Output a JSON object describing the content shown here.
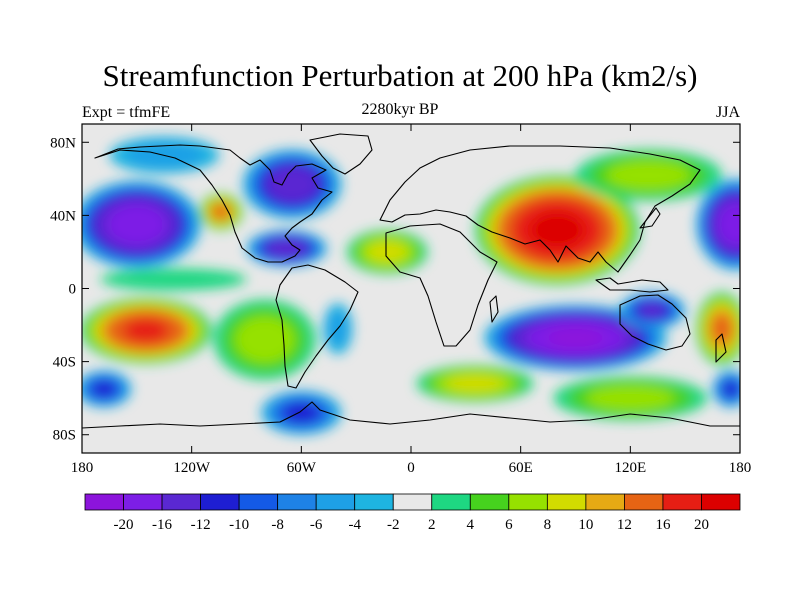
{
  "figure": {
    "title": "Streamfunction Perturbation at 200 hPa (km2/s)",
    "subtitle_left": "Expt = tfmFE",
    "subtitle_center": "2280kyr BP",
    "subtitle_right": "JJA"
  },
  "map": {
    "projection": "cylindrical-equidistant",
    "lon_range": [
      -180,
      180
    ],
    "lat_range": [
      -90,
      90
    ],
    "background_color": "#e8e8e8",
    "lat_ticks": [
      {
        "lat": 80,
        "label": "80N"
      },
      {
        "lat": 40,
        "label": "40N"
      },
      {
        "lat": 0,
        "label": "0"
      },
      {
        "lat": -40,
        "label": "40S"
      },
      {
        "lat": -80,
        "label": "80S"
      }
    ],
    "lon_ticks": [
      {
        "lon": -180,
        "label": "180"
      },
      {
        "lon": -120,
        "label": "120W"
      },
      {
        "lon": -60,
        "label": "60W"
      },
      {
        "lon": 0,
        "label": "0"
      },
      {
        "lon": 60,
        "label": "60E"
      },
      {
        "lon": 120,
        "label": "120E"
      },
      {
        "lon": 180,
        "label": "180"
      }
    ],
    "features": [
      {
        "name": "north-pacific-low",
        "lon": -150,
        "lat": 35,
        "rx": 35,
        "ry": 24,
        "value": -18
      },
      {
        "name": "north-pacific-low-dateline",
        "lon": 178,
        "lat": 35,
        "rx": 22,
        "ry": 25,
        "value": -18
      },
      {
        "name": "west-canada-high",
        "lon": -104,
        "lat": 42,
        "rx": 12,
        "ry": 10,
        "value": 12
      },
      {
        "name": "hudson-bay-low",
        "lon": -65,
        "lat": 57,
        "rx": 27,
        "ry": 19,
        "value": -14
      },
      {
        "name": "caribbean-low",
        "lon": -68,
        "lat": 22,
        "rx": 22,
        "ry": 10,
        "value": -14
      },
      {
        "name": "alaska-low",
        "lon": -135,
        "lat": 73,
        "rx": 30,
        "ry": 10,
        "value": -4
      },
      {
        "name": "north-atlantic-high",
        "lon": -13,
        "lat": 20,
        "rx": 22,
        "ry": 12,
        "value": 8
      },
      {
        "name": "tibetan-high",
        "lon": 80,
        "lat": 32,
        "rx": 45,
        "ry": 30,
        "value": 20
      },
      {
        "name": "pacific-high-east-asia",
        "lon": 130,
        "lat": 62,
        "rx": 40,
        "ry": 14,
        "value": 6
      },
      {
        "name": "south-indian-ocean-low",
        "lon": 90,
        "lat": -27,
        "rx": 50,
        "ry": 18,
        "value": -20
      },
      {
        "name": "western-australia-low",
        "lon": 132,
        "lat": -12,
        "rx": 18,
        "ry": 10,
        "value": -12
      },
      {
        "name": "south-pacific-high",
        "lon": -145,
        "lat": -23,
        "rx": 36,
        "ry": 18,
        "value": 16
      },
      {
        "name": "south-pacific-high-east",
        "lon": 170,
        "lat": -22,
        "rx": 14,
        "ry": 20,
        "value": 12
      },
      {
        "name": "south-america-pacific-high",
        "lon": -80,
        "lat": -28,
        "rx": 28,
        "ry": 22,
        "value": 6
      },
      {
        "name": "south-atlantic-low",
        "lon": -40,
        "lat": -22,
        "rx": 8,
        "ry": 14,
        "value": -4
      },
      {
        "name": "south-ocean-low-west",
        "lon": -168,
        "lat": -55,
        "rx": 15,
        "ry": 10,
        "value": -10
      },
      {
        "name": "south-ocean-low-east",
        "lon": 175,
        "lat": -55,
        "rx": 10,
        "ry": 10,
        "value": -10
      },
      {
        "name": "south-indian-high",
        "lon": 35,
        "lat": -52,
        "rx": 32,
        "ry": 10,
        "value": 8
      },
      {
        "name": "south-indian-high-east",
        "lon": 120,
        "lat": -60,
        "rx": 42,
        "ry": 12,
        "value": 6
      },
      {
        "name": "antarctic-low",
        "lon": -60,
        "lat": -68,
        "rx": 22,
        "ry": 12,
        "value": -10
      },
      {
        "name": "tropical-pacific-high",
        "lon": -130,
        "lat": 5,
        "rx": 40,
        "ry": 6,
        "value": 3
      }
    ]
  },
  "colorbar": {
    "levels": [
      "-20",
      "-16",
      "-12",
      "-10",
      "-8",
      "-6",
      "-4",
      "-2",
      "2",
      "4",
      "6",
      "8",
      "10",
      "12",
      "16",
      "20"
    ],
    "thresholds": [
      -20,
      -16,
      -12,
      -10,
      -8,
      -6,
      -4,
      -2,
      2,
      4,
      6,
      8,
      10,
      12,
      16,
      20
    ],
    "colors": [
      "#8c14dc",
      "#7d1ee6",
      "#5a28d2",
      "#1e1ed2",
      "#145ae6",
      "#1e82e6",
      "#1ea0e6",
      "#1eb4e1",
      "#e8e8e8",
      "#1ed782",
      "#46d21e",
      "#96e100",
      "#d2dc00",
      "#e6aa14",
      "#e66414",
      "#e61e14",
      "#dc0000"
    ]
  }
}
